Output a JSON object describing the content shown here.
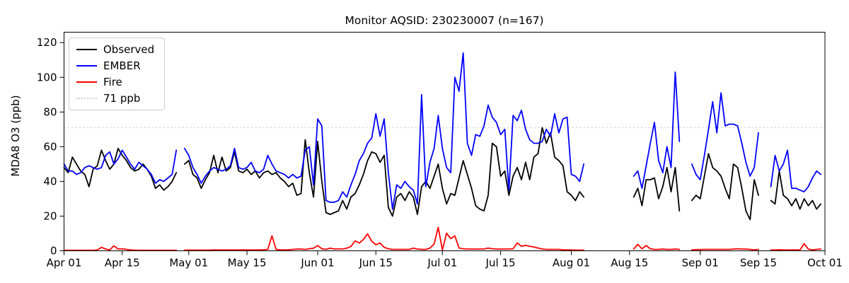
{
  "title": "Monitor AQSID: 230230007 (n=167)",
  "chart_data": {
    "type": "line",
    "title": "Monitor AQSID: 230230007 (n=167)",
    "xlabel": "",
    "ylabel": "MDA8 O3 (ppb)",
    "ylim": [
      0,
      126
    ],
    "y_ticks": [
      0,
      20,
      40,
      60,
      80,
      100,
      120
    ],
    "x_unit": "day index from Apr 01 (daily values, Apr 01 - Sep 30)",
    "x_range_days": [
      0,
      183
    ],
    "x_tick_days": [
      0,
      14,
      30,
      44,
      61,
      75,
      91,
      105,
      122,
      136,
      153,
      167,
      183
    ],
    "x_tick_labels": [
      "Apr 01",
      "Apr 15",
      "May 01",
      "May 15",
      "Jun 01",
      "Jun 15",
      "Jul 01",
      "Jul 15",
      "Aug 01",
      "Aug 15",
      "Sep 01",
      "Sep 15",
      "Oct 01"
    ],
    "grid": false,
    "legend_position": "upper left",
    "n_observations": 167,
    "reference_line": {
      "label": "71 ppb",
      "value": 71,
      "color": "#d3d3d3",
      "line_style": "dotted"
    },
    "legend": [
      {
        "label": "Observed",
        "color": "#000000",
        "line_style": "solid"
      },
      {
        "label": "EMBER",
        "color": "#0000ff",
        "line_style": "solid"
      },
      {
        "label": "Fire",
        "color": "#ff0000",
        "line_style": "solid"
      },
      {
        "label": "71 ppb",
        "color": "#d3d3d3",
        "line_style": "dotted"
      }
    ],
    "series": [
      {
        "name": "Observed",
        "color": "#000000",
        "values": [
          48,
          45,
          54,
          50,
          46,
          44,
          37,
          47,
          49,
          58,
          52,
          47,
          50,
          59,
          55,
          52,
          48,
          46,
          47,
          50,
          47,
          43,
          36,
          38,
          35,
          37,
          40,
          45,
          null,
          50,
          52,
          44,
          42,
          36,
          41,
          45,
          55,
          45,
          54,
          46,
          48,
          57,
          46,
          45,
          47,
          44,
          46,
          42,
          45,
          46,
          44,
          45,
          42,
          40,
          37,
          39,
          32,
          33,
          64,
          45,
          31,
          63,
          40,
          22,
          21,
          22,
          23,
          29,
          24,
          31,
          33,
          38,
          44,
          52,
          57,
          56,
          51,
          55,
          25,
          20,
          31,
          33,
          29,
          34,
          31,
          21,
          37,
          40,
          36,
          43,
          50,
          36,
          27,
          33,
          32,
          42,
          52,
          44,
          36,
          26,
          24,
          23,
          32,
          62,
          60,
          43,
          46,
          32,
          43,
          48,
          41,
          51,
          41,
          54,
          56,
          71,
          62,
          68,
          54,
          52,
          49,
          34,
          32,
          29,
          34,
          31,
          null,
          null,
          null,
          null,
          null,
          null,
          null,
          null,
          null,
          null,
          null,
          31,
          36,
          26,
          41,
          41,
          42,
          30,
          37,
          48,
          34,
          48,
          23,
          null,
          null,
          29,
          32,
          30,
          43,
          56,
          48,
          46,
          43,
          36,
          30,
          50,
          48,
          36,
          23,
          18,
          41,
          32,
          null,
          null,
          29,
          27,
          46,
          32,
          30,
          26,
          30,
          24,
          30,
          26,
          29,
          24,
          27
        ]
      },
      {
        "name": "EMBER",
        "color": "#0000ff",
        "values": [
          50,
          46,
          46,
          44,
          45,
          48,
          49,
          48,
          47,
          48,
          55,
          57,
          50,
          53,
          58,
          54,
          50,
          47,
          51,
          49,
          47,
          44,
          39,
          41,
          40,
          42,
          44,
          58,
          null,
          59,
          55,
          48,
          44,
          39,
          43,
          46,
          48,
          47,
          46,
          47,
          49,
          59,
          48,
          47,
          48,
          51,
          46,
          45,
          47,
          55,
          50,
          46,
          45,
          44,
          42,
          44,
          42,
          43,
          58,
          60,
          38,
          76,
          72,
          29,
          28,
          28,
          29,
          34,
          31,
          38,
          44,
          52,
          56,
          62,
          65,
          79,
          66,
          76,
          45,
          24,
          38,
          36,
          40,
          37,
          35,
          27,
          90,
          37,
          51,
          59,
          78,
          59,
          48,
          45,
          100,
          92,
          114,
          62,
          55,
          67,
          66,
          72,
          84,
          77,
          74,
          67,
          70,
          35,
          78,
          75,
          81,
          70,
          64,
          62,
          62,
          63,
          70,
          66,
          79,
          68,
          76,
          77,
          44,
          43,
          40,
          50,
          null,
          null,
          null,
          null,
          null,
          null,
          null,
          null,
          null,
          null,
          null,
          43,
          46,
          36,
          49,
          62,
          74,
          52,
          45,
          60,
          48,
          103,
          63,
          null,
          null,
          50,
          44,
          41,
          55,
          70,
          86,
          68,
          91,
          72,
          73,
          73,
          72,
          62,
          51,
          43,
          48,
          68,
          null,
          null,
          37,
          55,
          46,
          50,
          58,
          36,
          36,
          35,
          34,
          37,
          42,
          46,
          44
        ]
      },
      {
        "name": "Fire",
        "color": "#ff0000",
        "values": [
          0.3,
          0.3,
          0.3,
          0.3,
          0.3,
          0.3,
          0.3,
          0.3,
          0.5,
          2,
          1,
          0.5,
          2.9,
          1,
          1.2,
          0.8,
          0.5,
          0.4,
          0.3,
          0.3,
          0.3,
          0.3,
          0.3,
          0.3,
          0.3,
          0.3,
          0.3,
          0.3,
          null,
          0.4,
          0.4,
          0.4,
          0.4,
          0.4,
          0.4,
          0.4,
          0.5,
          0.5,
          0.5,
          0.5,
          0.5,
          0.5,
          0.5,
          0.5,
          0.5,
          0.5,
          0.5,
          0.5,
          0.6,
          0.8,
          8.6,
          0.8,
          0.5,
          0.5,
          0.6,
          0.8,
          1,
          1,
          0.8,
          1.2,
          1.5,
          3,
          1.2,
          0.8,
          1.5,
          1,
          1.2,
          1,
          1.5,
          2.5,
          5.7,
          4.5,
          6.5,
          9.8,
          5.5,
          3.5,
          4.5,
          2,
          1.2,
          0.8,
          0.8,
          0.8,
          0.8,
          0.8,
          1.5,
          1,
          0.8,
          0.8,
          1.5,
          4,
          13.5,
          0.5,
          10.2,
          7,
          8.6,
          1.6,
          1.2,
          1,
          1,
          1,
          1,
          1,
          1.6,
          1.2,
          1,
          1,
          1,
          1,
          1.2,
          4.5,
          2.6,
          3.2,
          2.6,
          2.2,
          1.6,
          1,
          0.8,
          0.8,
          0.8,
          0.8,
          0.6,
          0.5,
          0.5,
          0.4,
          0.4,
          0.4,
          null,
          null,
          null,
          null,
          null,
          null,
          null,
          null,
          null,
          null,
          null,
          1,
          3.7,
          1.2,
          3,
          1.2,
          0.8,
          0.8,
          1,
          0.8,
          0.8,
          1,
          0.8,
          null,
          null,
          0.5,
          0.7,
          0.7,
          0.8,
          0.8,
          0.8,
          0.8,
          0.8,
          0.8,
          0.8,
          1,
          1.2,
          1,
          1,
          0.8,
          0.5,
          0.8,
          null,
          null,
          0.5,
          0.5,
          0.6,
          0.5,
          0.5,
          0.5,
          0.5,
          0.5,
          4.1,
          1,
          0.5,
          0.8,
          1
        ]
      }
    ]
  }
}
